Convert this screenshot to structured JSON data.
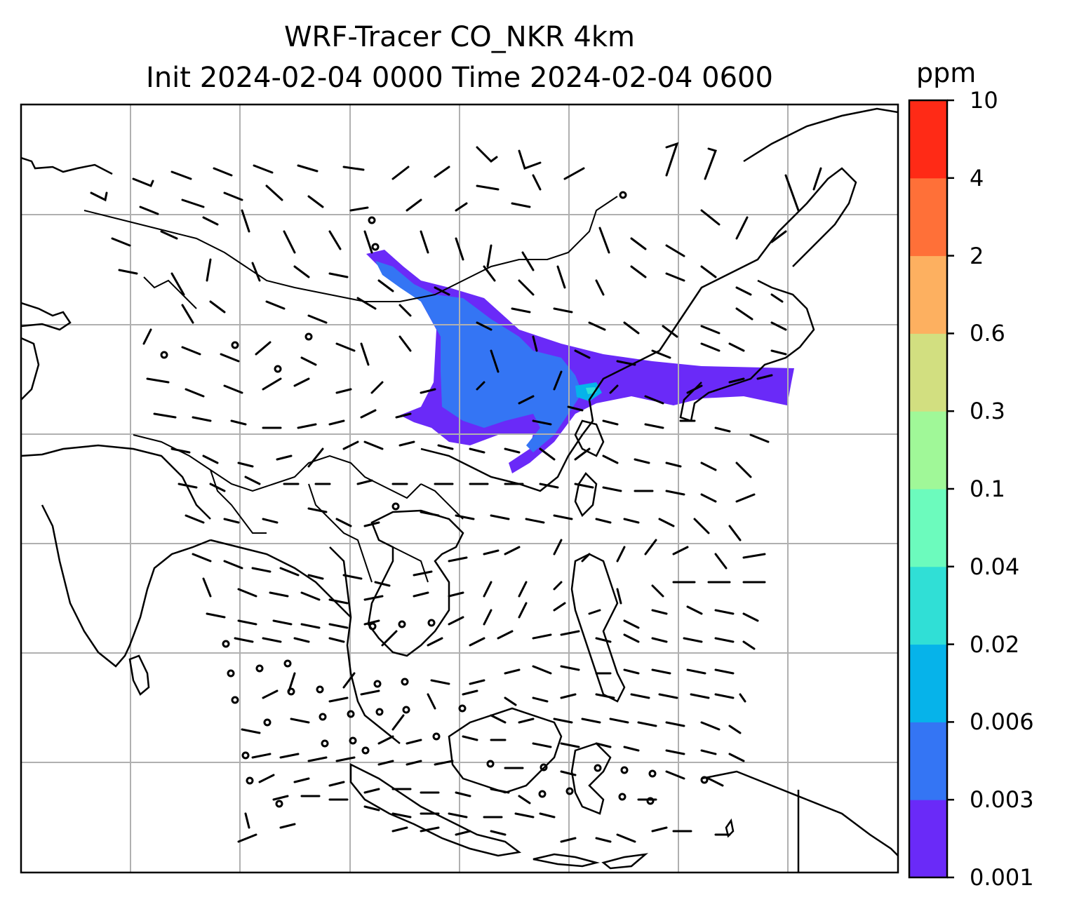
{
  "chart_data": {
    "type": "heatmap",
    "title": "WRF-Tracer CO_NKR 4km",
    "subtitle": "Init 2024-02-04 0000 Time 2024-02-04 0600",
    "colorbar": {
      "unit": "ppm",
      "levels": [
        "0.001",
        "0.003",
        "0.006",
        "0.02",
        "0.04",
        "0.1",
        "0.3",
        "0.6",
        "2",
        "4",
        "10"
      ],
      "colors": [
        "#6a2af8",
        "#3475f4",
        "#06b3ea",
        "#30dfd6",
        "#6cfbbd",
        "#a0f898",
        "#d2df80",
        "#fdb060",
        "#ff7038",
        "#ff2a16"
      ]
    },
    "map": {
      "projection": "lambert",
      "gridlines": true,
      "features": [
        "coastlines",
        "country borders",
        "wind barbs"
      ]
    },
    "plume": {
      "max_level_shown": "0.02",
      "dominant_level": "0.001-0.006"
    }
  }
}
